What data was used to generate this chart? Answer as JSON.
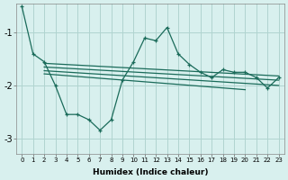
{
  "xlabel": "Humidex (Indice chaleur)",
  "bg_color": "#d8f0ee",
  "grid_color": "#b0d4d0",
  "line_color": "#1a6b5a",
  "xlim": [
    -0.5,
    23.5
  ],
  "ylim": [
    -3.3,
    -0.45
  ],
  "yticks": [
    -3,
    -2,
    -1
  ],
  "xticks": [
    0,
    1,
    2,
    3,
    4,
    5,
    6,
    7,
    8,
    9,
    10,
    11,
    12,
    13,
    14,
    15,
    16,
    17,
    18,
    19,
    20,
    21,
    22,
    23
  ],
  "main_line_x": [
    0,
    1,
    2,
    3,
    4,
    5,
    6,
    7,
    8,
    9,
    10,
    11,
    12,
    13,
    14,
    15,
    16,
    17,
    18,
    19,
    20,
    21,
    22,
    23
  ],
  "main_line_y": [
    -0.5,
    -1.4,
    -1.55,
    -2.0,
    -2.55,
    -2.55,
    -2.65,
    -2.85,
    -2.65,
    -1.9,
    -1.55,
    -1.1,
    -1.15,
    -0.9,
    -1.4,
    -1.6,
    -1.75,
    -1.85,
    -1.7,
    -1.75,
    -1.75,
    -1.85,
    -2.05,
    -1.85
  ],
  "reg_line1_x": [
    2,
    23
  ],
  "reg_line1_y": [
    -1.65,
    -1.9
  ],
  "reg_line2_x": [
    2,
    23
  ],
  "reg_line2_y": [
    -1.72,
    -2.0
  ],
  "reg_line3_x": [
    2,
    23
  ],
  "reg_line3_y": [
    -1.58,
    -1.82
  ],
  "reg_line4_x": [
    2,
    20
  ],
  "reg_line4_y": [
    -1.78,
    -2.08
  ]
}
